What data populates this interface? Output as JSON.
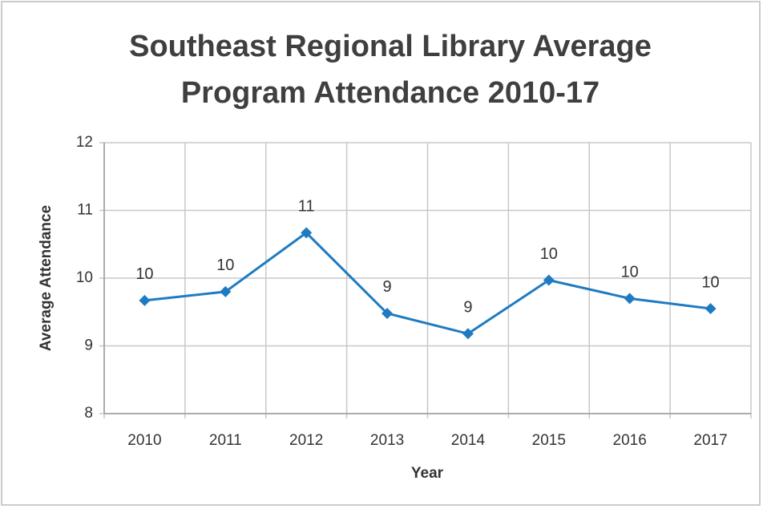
{
  "chart_data": {
    "type": "line",
    "title": [
      "Southeast Regional Library Average",
      "Program Attendance 2010-17"
    ],
    "x_label": "Year",
    "y_label": "Average Attendance",
    "categories": [
      "2010",
      "2011",
      "2012",
      "2013",
      "2014",
      "2015",
      "2016",
      "2017"
    ],
    "values": [
      9.67,
      9.8,
      10.67,
      9.48,
      9.18,
      9.97,
      9.7,
      9.55
    ],
    "value_labels": [
      "10",
      "10",
      "11",
      "9",
      "9",
      "10",
      "10",
      "10"
    ],
    "color": "#1f7bc1",
    "ylim": [
      8,
      12
    ],
    "yticks": [
      8,
      9,
      10,
      11,
      12
    ],
    "grid": true
  }
}
